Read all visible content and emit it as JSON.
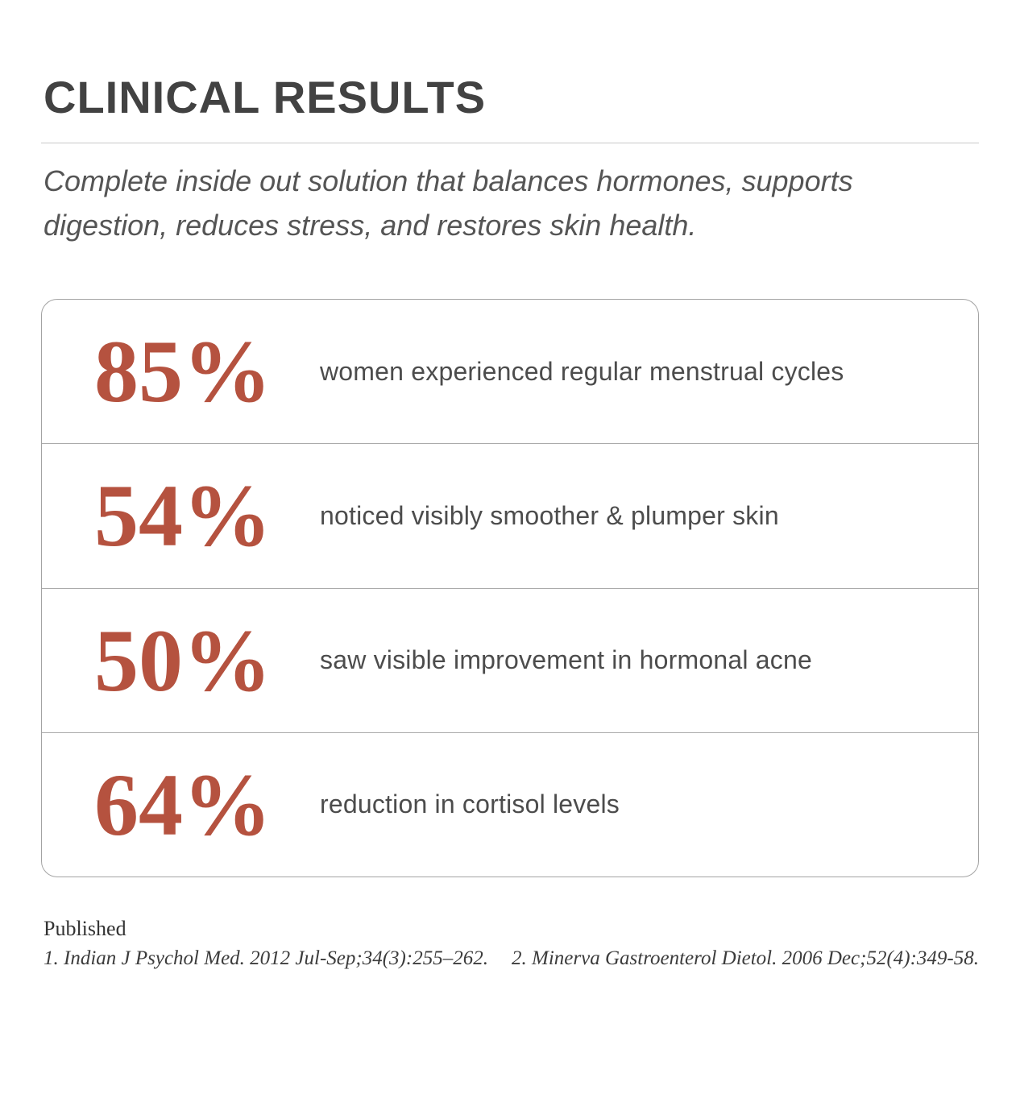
{
  "page": {
    "title": "CLINICAL RESULTS",
    "subtitle": "Complete inside out solution that balances hormones, supports digestion, reduces stress, and restores skin health."
  },
  "results": [
    {
      "percent": "85%",
      "description": "women experienced regular menstrual cycles"
    },
    {
      "percent": "54%",
      "description": "noticed visibly smoother & plumper skin"
    },
    {
      "percent": "50%",
      "description": "saw visible improvement in hormonal acne"
    },
    {
      "percent": "64%",
      "description": "reduction in cortisol levels"
    }
  ],
  "footer": {
    "published_label": "Published",
    "citations": [
      "1. Indian J Psychol Med. 2012 Jul-Sep;34(3):255–262.",
      "2. Minerva Gastroenterol Dietol. 2006 Dec;52(4):349-58."
    ]
  },
  "colors": {
    "accent": "#b5523f",
    "title_text": "#424242",
    "body_text": "#4c4c4c",
    "subtitle_text": "#555555",
    "card_border": "#a3a3a3",
    "divider": "#c8c8c8",
    "background": "#ffffff"
  }
}
